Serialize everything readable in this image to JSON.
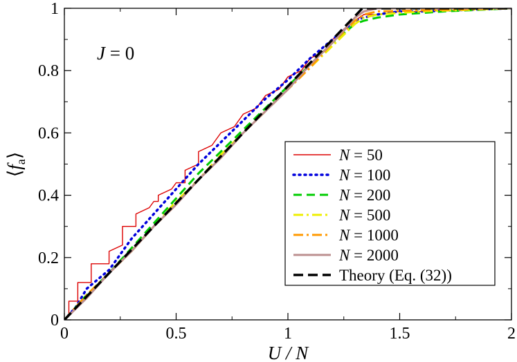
{
  "chart_data": {
    "type": "line",
    "xlabel": "U / N",
    "ylabel": "⟨f_a⟩",
    "xlim": [
      0,
      2
    ],
    "ylim": [
      0,
      1
    ],
    "x_ticks": [
      "0",
      "0.5",
      "1",
      "1.5",
      "2"
    ],
    "y_ticks": [
      "0",
      "0.2",
      "0.4",
      "0.6",
      "0.8",
      "1"
    ],
    "annotation": "J = 0",
    "legend_position": "lower-right",
    "grid": false,
    "series": [
      {
        "name": "N = 50",
        "color": "#dd0000",
        "style": "solid",
        "step": 0.02,
        "points": [
          [
            0,
            0
          ],
          [
            0.02,
            0.02
          ],
          [
            0.02,
            0.06
          ],
          [
            0.06,
            0.06
          ],
          [
            0.06,
            0.12
          ],
          [
            0.12,
            0.12
          ],
          [
            0.12,
            0.18
          ],
          [
            0.2,
            0.18
          ],
          [
            0.2,
            0.22
          ],
          [
            0.26,
            0.24
          ],
          [
            0.26,
            0.3
          ],
          [
            0.32,
            0.3
          ],
          [
            0.32,
            0.34
          ],
          [
            0.38,
            0.36
          ],
          [
            0.4,
            0.38
          ],
          [
            0.42,
            0.38
          ],
          [
            0.42,
            0.4
          ],
          [
            0.48,
            0.42
          ],
          [
            0.5,
            0.44
          ],
          [
            0.54,
            0.44
          ],
          [
            0.54,
            0.48
          ],
          [
            0.6,
            0.5
          ],
          [
            0.6,
            0.54
          ],
          [
            0.66,
            0.56
          ],
          [
            0.7,
            0.6
          ],
          [
            0.76,
            0.62
          ],
          [
            0.8,
            0.66
          ],
          [
            0.86,
            0.68
          ],
          [
            0.9,
            0.72
          ],
          [
            0.96,
            0.74
          ],
          [
            1.0,
            0.78
          ],
          [
            1.06,
            0.8
          ],
          [
            1.1,
            0.84
          ],
          [
            1.16,
            0.86
          ],
          [
            1.2,
            0.9
          ],
          [
            1.26,
            0.94
          ],
          [
            1.3,
            0.96
          ],
          [
            1.34,
            0.98
          ],
          [
            1.4,
            0.98
          ],
          [
            1.5,
            0.99
          ],
          [
            1.6,
            0.99
          ],
          [
            1.75,
            1.0
          ],
          [
            2.0,
            1.0
          ]
        ]
      },
      {
        "name": "N = 100",
        "color": "#0000dd",
        "style": "dotted",
        "points": [
          [
            0,
            0
          ],
          [
            0.05,
            0.04
          ],
          [
            0.1,
            0.1
          ],
          [
            0.2,
            0.16
          ],
          [
            0.3,
            0.26
          ],
          [
            0.4,
            0.34
          ],
          [
            0.5,
            0.42
          ],
          [
            0.6,
            0.5
          ],
          [
            0.7,
            0.57
          ],
          [
            0.8,
            0.64
          ],
          [
            0.9,
            0.71
          ],
          [
            1.0,
            0.77
          ],
          [
            1.1,
            0.84
          ],
          [
            1.2,
            0.9
          ],
          [
            1.3,
            0.96
          ],
          [
            1.34,
            0.97
          ],
          [
            1.4,
            0.98
          ],
          [
            1.5,
            0.99
          ],
          [
            1.6,
            0.99
          ],
          [
            2.0,
            1.0
          ]
        ]
      },
      {
        "name": "N = 200",
        "color": "#00cc00",
        "style": "dashed",
        "points": [
          [
            0,
            0
          ],
          [
            0.05,
            0.04
          ],
          [
            0.1,
            0.08
          ],
          [
            0.2,
            0.15
          ],
          [
            0.3,
            0.23
          ],
          [
            0.4,
            0.31
          ],
          [
            0.5,
            0.39
          ],
          [
            0.6,
            0.47
          ],
          [
            0.7,
            0.54
          ],
          [
            0.8,
            0.61
          ],
          [
            0.9,
            0.68
          ],
          [
            1.0,
            0.75
          ],
          [
            1.1,
            0.82
          ],
          [
            1.2,
            0.89
          ],
          [
            1.3,
            0.95
          ],
          [
            1.34,
            0.96
          ],
          [
            1.4,
            0.97
          ],
          [
            1.5,
            0.98
          ],
          [
            1.7,
            0.99
          ],
          [
            2.0,
            1.0
          ]
        ]
      },
      {
        "name": "N = 500",
        "color": "#eeee00",
        "style": "dashdot",
        "points": [
          [
            0,
            0
          ],
          [
            0.1,
            0.08
          ],
          [
            0.2,
            0.15
          ],
          [
            0.3,
            0.22
          ],
          [
            0.4,
            0.3
          ],
          [
            0.5,
            0.38
          ],
          [
            0.6,
            0.45
          ],
          [
            0.7,
            0.53
          ],
          [
            0.8,
            0.6
          ],
          [
            0.9,
            0.67
          ],
          [
            1.0,
            0.74
          ],
          [
            1.1,
            0.81
          ],
          [
            1.2,
            0.88
          ],
          [
            1.3,
            0.95
          ],
          [
            1.34,
            0.97
          ],
          [
            1.4,
            0.98
          ],
          [
            1.6,
            0.99
          ],
          [
            2.0,
            1.0
          ]
        ]
      },
      {
        "name": "N = 1000",
        "color": "#ff9900",
        "style": "dashdot",
        "points": [
          [
            0,
            0
          ],
          [
            0.1,
            0.08
          ],
          [
            0.2,
            0.15
          ],
          [
            0.3,
            0.22
          ],
          [
            0.4,
            0.3
          ],
          [
            0.5,
            0.37
          ],
          [
            0.6,
            0.45
          ],
          [
            0.7,
            0.52
          ],
          [
            0.8,
            0.6
          ],
          [
            0.9,
            0.67
          ],
          [
            1.0,
            0.74
          ],
          [
            1.1,
            0.81
          ],
          [
            1.2,
            0.89
          ],
          [
            1.3,
            0.96
          ],
          [
            1.34,
            0.98
          ],
          [
            1.4,
            0.99
          ],
          [
            2.0,
            1.0
          ]
        ]
      },
      {
        "name": "N = 2000",
        "color": "#bc8f8f",
        "style": "solid",
        "points": [
          [
            0,
            0
          ],
          [
            0.1,
            0.07
          ],
          [
            0.2,
            0.15
          ],
          [
            0.3,
            0.22
          ],
          [
            0.4,
            0.3
          ],
          [
            0.5,
            0.37
          ],
          [
            0.6,
            0.45
          ],
          [
            0.7,
            0.52
          ],
          [
            0.8,
            0.6
          ],
          [
            0.9,
            0.67
          ],
          [
            1.0,
            0.74
          ],
          [
            1.1,
            0.82
          ],
          [
            1.2,
            0.89
          ],
          [
            1.3,
            0.97
          ],
          [
            1.34,
            0.99
          ],
          [
            1.4,
            1.0
          ],
          [
            2.0,
            1.0
          ]
        ]
      },
      {
        "name": "Theory (Eq. (32))",
        "color": "#000000",
        "style": "dashed-bold",
        "points": [
          [
            0,
            0
          ],
          [
            1.333,
            1.0
          ],
          [
            2.0,
            1.0
          ]
        ]
      }
    ]
  }
}
